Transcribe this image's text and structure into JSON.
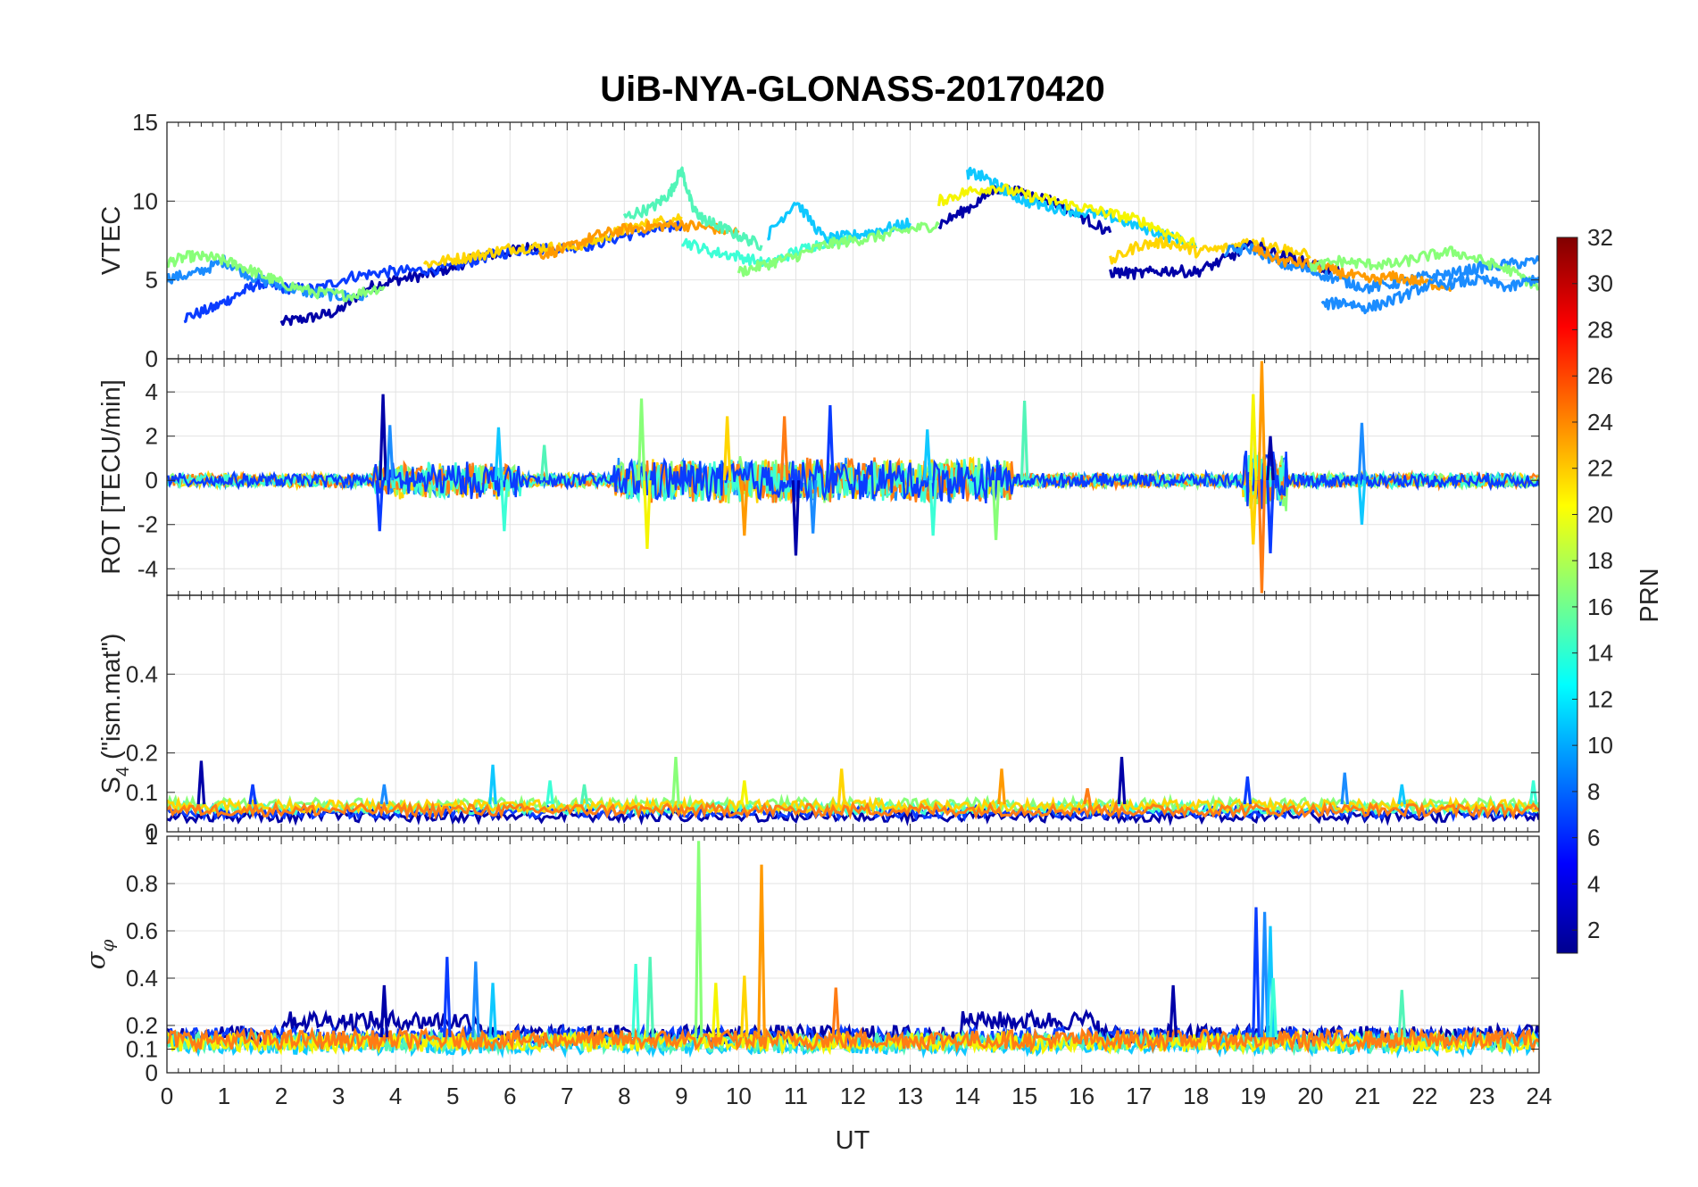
{
  "figure": {
    "title": "UiB-NYA-GLONASS-20170420",
    "xlabel": "UT",
    "colorbar_label": "PRN",
    "colorbar_ticks": [
      "2",
      "4",
      "6",
      "8",
      "10",
      "12",
      "14",
      "16",
      "18",
      "20",
      "22",
      "24",
      "26",
      "28",
      "30",
      "32"
    ],
    "colorbar_range": [
      1,
      32
    ],
    "colormap": "jet",
    "line_colors": {
      "dark_blue": "#0000a8",
      "blue": "#0a3cff",
      "mid_blue": "#1b8cff",
      "sky": "#0fc8ff",
      "cyan": "#3cffd6",
      "aqua": "#52f5b8",
      "green": "#88ff78",
      "yellow": "#f5f500",
      "gold": "#ffd500",
      "orange": "#ff9a00",
      "dark_orange": "#ff7c14"
    }
  },
  "chart_data": [
    {
      "type": "line",
      "panel": "vtec",
      "ylabel": "VTEC",
      "xlim": [
        0,
        24
      ],
      "ylim": [
        0,
        15
      ],
      "yticks": [
        "0",
        "5",
        "10",
        "15"
      ],
      "xticks": [
        "0",
        "1",
        "2",
        "3",
        "4",
        "5",
        "6",
        "7",
        "8",
        "9",
        "10",
        "11",
        "12",
        "13",
        "14",
        "15",
        "16",
        "17",
        "18",
        "19",
        "20",
        "21",
        "22",
        "23",
        "24"
      ],
      "grid": true,
      "note_series": "many satellite tracks colored by PRN; values approximate",
      "series": [
        {
          "color": "dark_blue",
          "x": [
            2.0,
            2.5,
            3.0,
            3.5,
            4.0,
            4.5,
            5.0,
            5.5,
            6.0,
            6.5
          ],
          "y": [
            2.3,
            2.6,
            3.0,
            4.5,
            5.0,
            5.3,
            5.8,
            6.5,
            6.8,
            7.2
          ]
        },
        {
          "color": "blue",
          "x": [
            0.3,
            0.8,
            1.2,
            1.6,
            2.0,
            2.6,
            3.2,
            3.8,
            4.4,
            5.0,
            5.6,
            6.2,
            6.8,
            7.4,
            8.0,
            8.6,
            9.0
          ],
          "y": [
            2.6,
            3.2,
            4.0,
            4.8,
            4.5,
            4.4,
            5.2,
            5.5,
            5.6,
            5.8,
            6.5,
            6.9,
            7.0,
            7.2,
            7.8,
            8.2,
            8.5
          ]
        },
        {
          "color": "mid_blue",
          "x": [
            0.0,
            0.5,
            1.0,
            1.5,
            2.0,
            2.5,
            3.0,
            3.5
          ],
          "y": [
            5.1,
            5.4,
            6.2,
            5.2,
            4.6,
            4.2,
            4.0,
            3.9
          ]
        },
        {
          "color": "green",
          "x": [
            0.0,
            0.4,
            0.8,
            1.2,
            1.6,
            2.0,
            2.6,
            3.2,
            3.8
          ],
          "y": [
            6.1,
            6.5,
            6.4,
            6.0,
            5.4,
            4.8,
            4.2,
            4.0,
            4.6
          ]
        },
        {
          "color": "gold",
          "x": [
            4.5,
            5.0,
            5.5,
            6.0,
            6.5,
            7.0,
            7.5,
            8.0,
            8.5,
            9.0
          ],
          "y": [
            6.0,
            6.3,
            6.6,
            7.0,
            7.1,
            7.0,
            7.5,
            8.2,
            8.6,
            9.0
          ]
        },
        {
          "color": "orange",
          "x": [
            6.5,
            7.0,
            7.5,
            8.0,
            8.5,
            9.0,
            9.5,
            10.0
          ],
          "y": [
            6.6,
            7.0,
            7.8,
            8.2,
            8.4,
            8.5,
            8.3,
            8.0
          ]
        },
        {
          "color": "aqua",
          "x": [
            8.0,
            8.5,
            8.8,
            9.0,
            9.2,
            9.4,
            9.6,
            10.0,
            10.4
          ],
          "y": [
            9.0,
            9.6,
            10.5,
            12.0,
            9.5,
            8.8,
            8.5,
            7.8,
            7.2
          ]
        },
        {
          "color": "cyan",
          "x": [
            9.0,
            9.5,
            10.0,
            10.5,
            11.0,
            11.5,
            12.0
          ],
          "y": [
            7.5,
            6.8,
            6.5,
            6.0,
            6.8,
            7.4,
            7.8
          ]
        },
        {
          "color": "sky",
          "x": [
            10.5,
            11.0,
            11.5,
            12.0,
            12.5,
            13.0
          ],
          "y": [
            7.8,
            10.0,
            7.6,
            7.8,
            8.2,
            8.6
          ]
        },
        {
          "color": "green",
          "x": [
            10.0,
            10.5,
            11.0,
            11.5,
            12.0,
            12.5,
            13.0,
            13.5
          ],
          "y": [
            5.5,
            6.0,
            6.5,
            7.2,
            7.5,
            7.8,
            8.2,
            8.5
          ]
        },
        {
          "color": "dark_blue",
          "x": [
            13.5,
            14.0,
            14.5,
            15.0,
            15.5,
            16.0,
            16.5
          ],
          "y": [
            8.5,
            9.5,
            10.8,
            10.5,
            10.0,
            9.0,
            8.0
          ]
        },
        {
          "color": "sky",
          "x": [
            14.0,
            14.3,
            14.6,
            15.0,
            15.5,
            16.0,
            16.5,
            17.0,
            17.5,
            18.0
          ],
          "y": [
            11.8,
            11.5,
            10.8,
            10.0,
            9.6,
            9.3,
            9.0,
            8.4,
            7.8,
            7.0
          ]
        },
        {
          "color": "yellow",
          "x": [
            13.5,
            14.0,
            14.5,
            15.0,
            15.5,
            16.0,
            16.5,
            17.0,
            17.5,
            18.0
          ],
          "y": [
            10.0,
            10.6,
            10.9,
            10.4,
            10.0,
            9.6,
            9.2,
            8.8,
            8.0,
            7.2
          ]
        },
        {
          "color": "gold",
          "x": [
            16.5,
            17.0,
            17.5,
            18.0,
            18.5,
            19.0,
            19.5,
            20.0
          ],
          "y": [
            6.2,
            7.2,
            7.4,
            6.8,
            7.0,
            7.5,
            7.0,
            6.5
          ]
        },
        {
          "color": "dark_blue",
          "x": [
            16.5,
            17.0,
            17.5,
            18.0,
            18.5,
            19.0,
            19.5,
            20.0,
            20.5
          ],
          "y": [
            5.5,
            5.4,
            5.6,
            5.5,
            6.3,
            7.2,
            6.5,
            6.0,
            5.5
          ]
        },
        {
          "color": "mid_blue",
          "x": [
            18.5,
            19.0,
            19.5,
            20.0,
            20.5,
            21.0,
            21.5,
            22.0,
            22.5,
            23.0,
            23.5,
            24.0
          ],
          "y": [
            6.8,
            7.0,
            6.0,
            5.6,
            5.0,
            4.5,
            4.8,
            5.2,
            5.4,
            5.8,
            6.0,
            6.2
          ]
        },
        {
          "color": "orange",
          "x": [
            19.0,
            19.5,
            20.0,
            20.5,
            21.0,
            21.5,
            22.0,
            22.5
          ],
          "y": [
            7.0,
            6.2,
            6.0,
            5.5,
            5.0,
            5.2,
            4.8,
            4.6
          ]
        },
        {
          "color": "green",
          "x": [
            20.0,
            20.5,
            21.0,
            21.5,
            22.0,
            22.5,
            23.0,
            23.5,
            24.0
          ],
          "y": [
            5.8,
            6.2,
            6.0,
            6.0,
            6.5,
            6.8,
            6.2,
            5.6,
            4.5
          ]
        },
        {
          "color": "mid_blue",
          "x": [
            20.2,
            20.6,
            21.0,
            21.5,
            22.0,
            22.5,
            23.0,
            23.5,
            24.0
          ],
          "y": [
            3.4,
            3.6,
            3.2,
            3.8,
            4.6,
            4.8,
            5.0,
            4.5,
            5.2
          ]
        }
      ]
    },
    {
      "type": "line",
      "panel": "rot",
      "ylabel": "ROT [TECU/min]",
      "xlim": [
        0,
        24
      ],
      "ylim": [
        -5.2,
        5.5
      ],
      "yticks": [
        "-4",
        "-2",
        "0",
        "2",
        "4"
      ],
      "grid": true,
      "note_series": "rate of TEC fluctuating around 0; spikes listed",
      "baseline": 0,
      "spikes": [
        {
          "x": 3.78,
          "y": 3.9
        },
        {
          "x": 3.72,
          "y": -2.3
        },
        {
          "x": 3.9,
          "y": 2.5
        },
        {
          "x": 5.8,
          "y": 2.4
        },
        {
          "x": 5.9,
          "y": -2.3
        },
        {
          "x": 6.6,
          "y": 1.6
        },
        {
          "x": 8.3,
          "y": 3.7
        },
        {
          "x": 8.4,
          "y": -3.1
        },
        {
          "x": 9.8,
          "y": 2.9
        },
        {
          "x": 10.1,
          "y": -2.5
        },
        {
          "x": 10.8,
          "y": 2.9
        },
        {
          "x": 11.0,
          "y": -3.4
        },
        {
          "x": 11.6,
          "y": 3.4
        },
        {
          "x": 11.3,
          "y": -2.4
        },
        {
          "x": 13.3,
          "y": 2.3
        },
        {
          "x": 13.4,
          "y": -2.5
        },
        {
          "x": 15.0,
          "y": 3.6
        },
        {
          "x": 14.5,
          "y": -2.7
        },
        {
          "x": 19.0,
          "y": 3.9
        },
        {
          "x": 19.0,
          "y": -2.9
        },
        {
          "x": 19.15,
          "y": 5.4
        },
        {
          "x": 19.15,
          "y": -5.1
        },
        {
          "x": 19.3,
          "y": 2.0
        },
        {
          "x": 19.3,
          "y": -3.3
        },
        {
          "x": 20.9,
          "y": 2.6
        },
        {
          "x": 20.9,
          "y": -2.0
        }
      ]
    },
    {
      "type": "line",
      "panel": "s4",
      "ylabel": "S4 (\"ism.mat\")",
      "ylabel_main": "S",
      "ylabel_sub": "4",
      "ylabel_rest": " (\"ism.mat\")",
      "xlim": [
        0,
        24
      ],
      "ylim": [
        0,
        0.6
      ],
      "yticks": [
        "0",
        "0.1",
        "0.2",
        "0.4"
      ],
      "grid": true,
      "note_series": "scintillation index baseline ~0.04-0.1 with spikes",
      "spikes": [
        {
          "x": 0.6,
          "y": 0.18
        },
        {
          "x": 1.5,
          "y": 0.12
        },
        {
          "x": 3.8,
          "y": 0.12
        },
        {
          "x": 5.7,
          "y": 0.17
        },
        {
          "x": 6.7,
          "y": 0.13
        },
        {
          "x": 7.3,
          "y": 0.12
        },
        {
          "x": 8.9,
          "y": 0.19
        },
        {
          "x": 10.1,
          "y": 0.13
        },
        {
          "x": 11.8,
          "y": 0.16
        },
        {
          "x": 14.6,
          "y": 0.16
        },
        {
          "x": 16.1,
          "y": 0.11
        },
        {
          "x": 16.7,
          "y": 0.19
        },
        {
          "x": 18.9,
          "y": 0.14
        },
        {
          "x": 20.6,
          "y": 0.15
        },
        {
          "x": 21.6,
          "y": 0.12
        },
        {
          "x": 23.9,
          "y": 0.13
        }
      ]
    },
    {
      "type": "line",
      "panel": "sigma_phi",
      "ylabel": "σφ",
      "ylabel_main": "σ",
      "ylabel_sub": "φ",
      "xlim": [
        0,
        24
      ],
      "ylim": [
        0,
        1.0
      ],
      "yticks": [
        "0",
        "0.1",
        "0.2",
        "0.4",
        "0.6",
        "0.8",
        "1"
      ],
      "grid": true,
      "note_series": "phase scintillation index baseline ~0.1-0.25 with spikes",
      "spikes": [
        {
          "x": 3.8,
          "y": 0.37
        },
        {
          "x": 4.9,
          "y": 0.49
        },
        {
          "x": 5.4,
          "y": 0.47
        },
        {
          "x": 5.7,
          "y": 0.38
        },
        {
          "x": 8.2,
          "y": 0.46
        },
        {
          "x": 8.45,
          "y": 0.49
        },
        {
          "x": 9.3,
          "y": 0.98
        },
        {
          "x": 9.6,
          "y": 0.38
        },
        {
          "x": 10.1,
          "y": 0.41
        },
        {
          "x": 10.4,
          "y": 0.88
        },
        {
          "x": 11.7,
          "y": 0.36
        },
        {
          "x": 17.6,
          "y": 0.37
        },
        {
          "x": 19.05,
          "y": 0.7
        },
        {
          "x": 19.2,
          "y": 0.68
        },
        {
          "x": 19.3,
          "y": 0.62
        },
        {
          "x": 19.35,
          "y": 0.4
        },
        {
          "x": 21.6,
          "y": 0.35
        }
      ]
    }
  ]
}
